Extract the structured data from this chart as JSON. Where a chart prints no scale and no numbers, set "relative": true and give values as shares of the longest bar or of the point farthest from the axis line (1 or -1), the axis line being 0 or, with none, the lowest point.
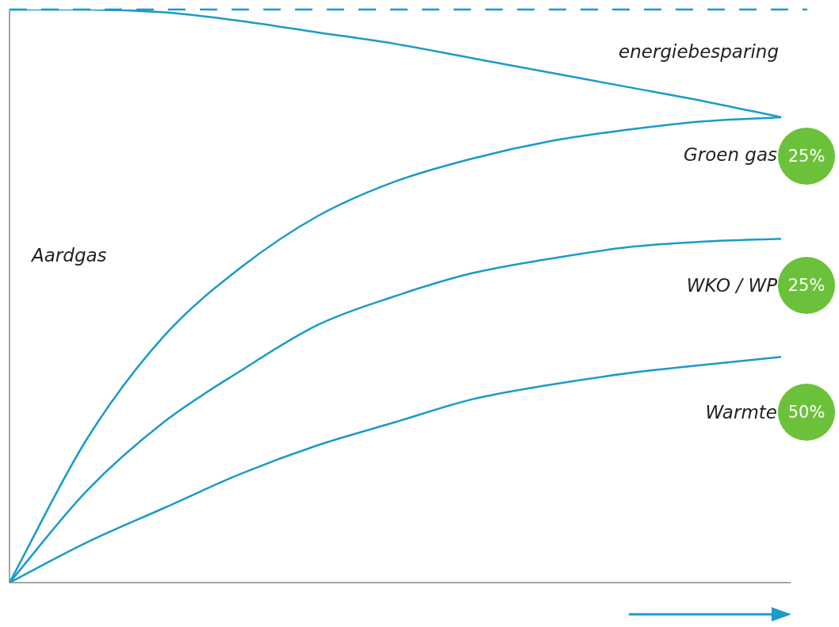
{
  "chart_data": {
    "type": "line",
    "relative": true,
    "marker": "none",
    "categories": [
      null,
      null,
      null,
      null,
      null,
      null,
      null,
      null,
      null,
      null,
      null
    ],
    "series": [
      {
        "color": "#1a9bc9",
        "values": [
          1,
          1,
          0.995,
          0.98,
          0.96,
          0.94,
          0.915,
          0.89,
          0.865,
          0.84,
          0.812
        ]
      },
      {
        "color": "#1a9bc9",
        "values": [
          0,
          0.25,
          0.43,
          0.55,
          0.64,
          0.7,
          0.74,
          0.77,
          0.79,
          0.805,
          0.812
        ]
      },
      {
        "color": "#1a9bc9",
        "values": [
          0,
          0.16,
          0.28,
          0.37,
          0.45,
          0.5,
          0.54,
          0.565,
          0.585,
          0.595,
          0.6
        ]
      },
      {
        "color": "#1a9bc9",
        "values": [
          0,
          0.07,
          0.13,
          0.19,
          0.24,
          0.28,
          0.32,
          0.345,
          0.365,
          0.38,
          0.394
        ]
      }
    ],
    "ref_lines": [
      {
        "axis": "y",
        "value": 1,
        "color": "#1a9bc9",
        "line_style": "dashed"
      }
    ],
    "annotations": [
      "energiebesparing",
      "Aardgas",
      "Groen gas",
      "WKO / WP",
      "Warmte",
      "25%",
      "25%",
      "50%"
    ]
  }
}
